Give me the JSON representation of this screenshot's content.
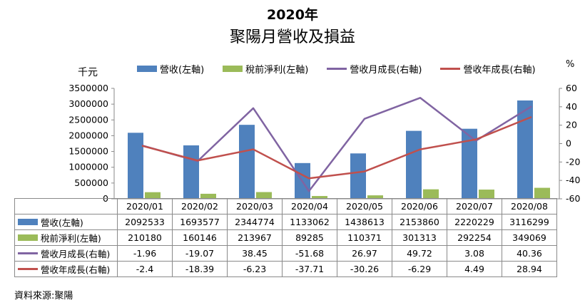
{
  "chart_data": {
    "type": "bar",
    "title": "2020年",
    "subtitle": "聚陽月營收及損益",
    "y_left_unit": "千元",
    "y_right_unit": "%",
    "categories": [
      "2020/01",
      "2020/02",
      "2020/03",
      "2020/04",
      "2020/05",
      "2020/06",
      "2020/07",
      "2020/08"
    ],
    "ylim_left": [
      0,
      3500000
    ],
    "ylim_right": [
      -60,
      60
    ],
    "y_left_ticks": [
      "0",
      "500000",
      "1000000",
      "1500000",
      "2000000",
      "2500000",
      "3000000",
      "3500000"
    ],
    "y_right_ticks": [
      "-60",
      "-40",
      "-20",
      "0",
      "20",
      "40",
      "60"
    ],
    "legend_position": "top",
    "grid": false,
    "series": [
      {
        "name": "營收(左軸)",
        "kind": "bar",
        "axis": "left",
        "color": "#4f81bd",
        "values": [
          2092533,
          1693577,
          2344774,
          1133062,
          1438613,
          2153860,
          2220229,
          3116299
        ],
        "display": [
          "2092533",
          "1693577",
          "2344774",
          "1133062",
          "1438613",
          "2153860",
          "2220229",
          "3116299"
        ]
      },
      {
        "name": "稅前淨利(左軸)",
        "kind": "bar",
        "axis": "left",
        "color": "#9bbb59",
        "values": [
          210180,
          160146,
          213967,
          89285,
          110371,
          301313,
          292254,
          349069
        ],
        "display": [
          "210180",
          "160146",
          "213967",
          "89285",
          "110371",
          "301313",
          "292254",
          "349069"
        ]
      },
      {
        "name": "營收月成長(右軸)",
        "kind": "line",
        "axis": "right",
        "color": "#8064a2",
        "values": [
          -1.96,
          -19.07,
          38.45,
          -51.68,
          26.97,
          49.72,
          3.08,
          40.36
        ],
        "display": [
          "-1.96",
          "-19.07",
          "38.45",
          "-51.68",
          "26.97",
          "49.72",
          "3.08",
          "40.36"
        ]
      },
      {
        "name": "營收年成長(右軸)",
        "kind": "line",
        "axis": "right",
        "color": "#c0504d",
        "values": [
          -2.4,
          -18.39,
          -6.23,
          -37.71,
          -30.26,
          -6.29,
          4.49,
          28.94
        ],
        "display": [
          "-2.4",
          "-18.39",
          "-6.23",
          "-37.71",
          "-30.26",
          "-6.29",
          "4.49",
          "28.94"
        ]
      }
    ]
  },
  "source_note": "資料來源:聚陽"
}
